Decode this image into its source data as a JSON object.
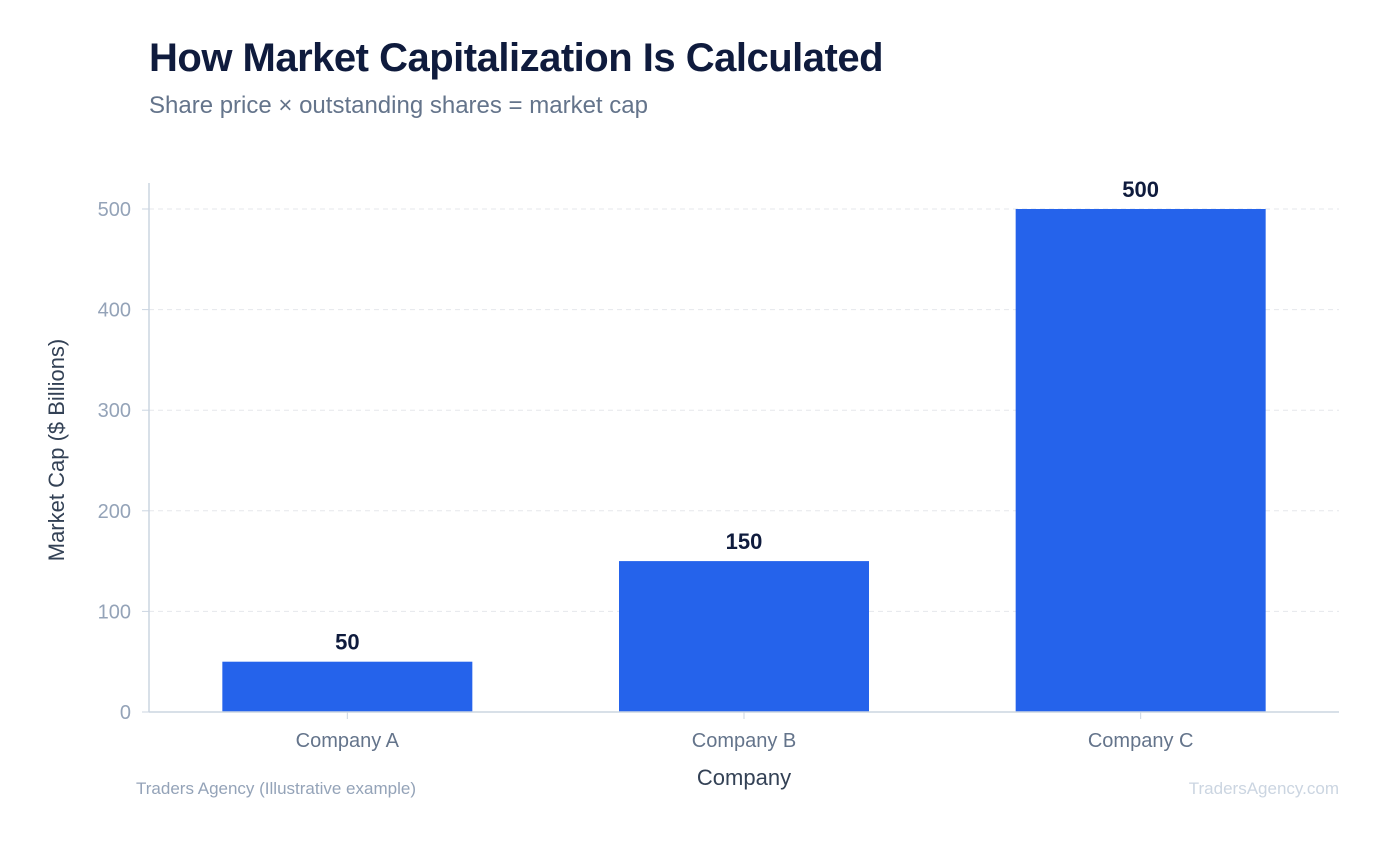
{
  "header": {
    "title": "How Market Capitalization Is Calculated",
    "subtitle": "Share price × outstanding shares = market cap"
  },
  "footer": {
    "source": "Traders Agency (Illustrative example)",
    "brand": "TradersAgency.com"
  },
  "colors": {
    "bar": "#2563eb",
    "grid": "#e5e7eb",
    "axis": "#cbd5e1",
    "tick_text": "#94a3b8",
    "category_text": "#64748b",
    "label_text": "#334155",
    "value_text": "#0f1b3d"
  },
  "chart_data": {
    "type": "bar",
    "categories": [
      "Company A",
      "Company B",
      "Company C"
    ],
    "values": [
      50,
      150,
      500
    ],
    "xlabel": "Company",
    "ylabel": "Market Cap ($ Billions)",
    "ylim": [
      0,
      525
    ],
    "yticks": [
      0,
      100,
      200,
      300,
      400,
      500
    ],
    "grid": true,
    "data_labels": true
  }
}
